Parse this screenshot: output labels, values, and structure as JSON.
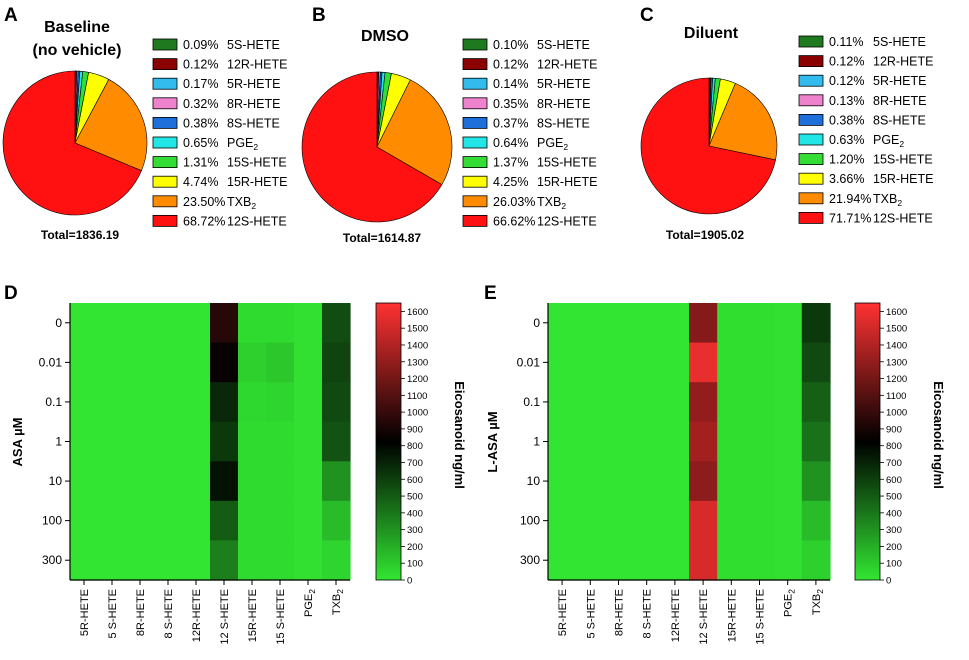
{
  "chart_data": [
    {
      "panel": "A",
      "type": "pie",
      "title_line1": "Baseline",
      "title_line2": "(no vehicle)",
      "total_label": "Total=1836.19",
      "slices": [
        {
          "name": "5S-HETE",
          "pct_label": "0.09%",
          "value": 0.09,
          "color": "#1f7a1f"
        },
        {
          "name": "12R-HETE",
          "pct_label": "0.12%",
          "value": 0.12,
          "color": "#8b0000"
        },
        {
          "name": "5R-HETE",
          "pct_label": "0.17%",
          "value": 0.17,
          "color": "#33bbee"
        },
        {
          "name": "8R-HETE",
          "pct_label": "0.32%",
          "value": 0.32,
          "color": "#ee82cc"
        },
        {
          "name": "8S-HETE",
          "pct_label": "0.38%",
          "value": 0.38,
          "color": "#1e6fd9"
        },
        {
          "name": "PGE",
          "sub": "2",
          "pct_label": "0.65%",
          "value": 0.65,
          "color": "#22e5e5"
        },
        {
          "name": "15S-HETE",
          "pct_label": "1.31%",
          "value": 1.31,
          "color": "#33dd33"
        },
        {
          "name": "15R-HETE",
          "pct_label": "4.74%",
          "value": 4.74,
          "color": "#ffff00"
        },
        {
          "name": "TXB",
          "sub": "2",
          "pct_label": "23.50%",
          "value": 23.5,
          "color": "#ff8c00"
        },
        {
          "name": "12S-HETE",
          "pct_label": "68.72%",
          "value": 68.72,
          "color": "#ff1111"
        }
      ]
    },
    {
      "panel": "B",
      "type": "pie",
      "title_line1": "DMSO",
      "total_label": "Total=1614.87",
      "slices": [
        {
          "name": "5S-HETE",
          "pct_label": "0.10%",
          "value": 0.1,
          "color": "#1f7a1f"
        },
        {
          "name": "12R-HETE",
          "pct_label": "0.12%",
          "value": 0.12,
          "color": "#8b0000"
        },
        {
          "name": "5R-HETE",
          "pct_label": "0.14%",
          "value": 0.14,
          "color": "#33bbee"
        },
        {
          "name": "8R-HETE",
          "pct_label": "0.35%",
          "value": 0.35,
          "color": "#ee82cc"
        },
        {
          "name": "8S-HETE",
          "pct_label": "0.37%",
          "value": 0.37,
          "color": "#1e6fd9"
        },
        {
          "name": "PGE",
          "sub": "2",
          "pct_label": "0.64%",
          "value": 0.64,
          "color": "#22e5e5"
        },
        {
          "name": "15S-HETE",
          "pct_label": "1.37%",
          "value": 1.37,
          "color": "#33dd33"
        },
        {
          "name": "15R-HETE",
          "pct_label": "4.25%",
          "value": 4.25,
          "color": "#ffff00"
        },
        {
          "name": "TXB",
          "sub": "2",
          "pct_label": "26.03%",
          "value": 26.03,
          "color": "#ff8c00"
        },
        {
          "name": "12S-HETE",
          "pct_label": "66.62%",
          "value": 66.62,
          "color": "#ff1111"
        }
      ]
    },
    {
      "panel": "C",
      "type": "pie",
      "title_line1": "Diluent",
      "total_label": "Total=1905.02",
      "slices": [
        {
          "name": "5S-HETE",
          "pct_label": "0.11%",
          "value": 0.11,
          "color": "#1f7a1f"
        },
        {
          "name": "12R-HETE",
          "pct_label": "0.12%",
          "value": 0.12,
          "color": "#8b0000"
        },
        {
          "name": "5R-HETE",
          "pct_label": "0.12%",
          "value": 0.12,
          "color": "#33bbee"
        },
        {
          "name": "8R-HETE",
          "pct_label": "0.13%",
          "value": 0.13,
          "color": "#ee82cc"
        },
        {
          "name": "8S-HETE",
          "pct_label": "0.38%",
          "value": 0.38,
          "color": "#1e6fd9"
        },
        {
          "name": "PGE",
          "sub": "2",
          "pct_label": "0.63%",
          "value": 0.63,
          "color": "#22e5e5"
        },
        {
          "name": "15S-HETE",
          "pct_label": "1.20%",
          "value": 1.2,
          "color": "#33dd33"
        },
        {
          "name": "15R-HETE",
          "pct_label": "3.66%",
          "value": 3.66,
          "color": "#ffff00"
        },
        {
          "name": "TXB",
          "sub": "2",
          "pct_label": "21.94%",
          "value": 21.94,
          "color": "#ff8c00"
        },
        {
          "name": "12S-HETE",
          "pct_label": "71.71%",
          "value": 71.71,
          "color": "#ff1111"
        }
      ]
    },
    {
      "panel": "D",
      "type": "heatmap",
      "ylabel": "ASA µM",
      "colorbar_label": "Eicosanoid ng/ml",
      "colorbar_range": [
        0,
        1650
      ],
      "colorbar_ticks": [
        0,
        100,
        200,
        300,
        400,
        500,
        600,
        700,
        800,
        900,
        1000,
        1100,
        1200,
        1300,
        1400,
        1500,
        1600
      ],
      "colormap": [
        "#32e632",
        "#000000",
        "#ff3232"
      ],
      "rows": [
        "0",
        "0.01",
        "0.1",
        "1",
        "10",
        "100",
        "300"
      ],
      "columns": [
        {
          "name": "5R-HETE"
        },
        {
          "name": "5 S-HETE"
        },
        {
          "name": "8R-HETE"
        },
        {
          "name": "8 S-HETE"
        },
        {
          "name": "12R-HETE"
        },
        {
          "name": "12 S-HETE"
        },
        {
          "name": "15R-HETE"
        },
        {
          "name": "15 S-HETE"
        },
        {
          "name": "PGE",
          "sub": "2"
        },
        {
          "name": "TXB",
          "sub": "2"
        }
      ],
      "values": [
        [
          5,
          5,
          5,
          5,
          5,
          950,
          40,
          40,
          20,
          550
        ],
        [
          5,
          5,
          5,
          5,
          5,
          850,
          80,
          110,
          20,
          580
        ],
        [
          5,
          5,
          5,
          5,
          5,
          680,
          50,
          60,
          20,
          560
        ],
        [
          5,
          5,
          5,
          5,
          5,
          620,
          40,
          40,
          20,
          530
        ],
        [
          5,
          5,
          5,
          5,
          5,
          760,
          40,
          40,
          20,
          300
        ],
        [
          5,
          5,
          5,
          5,
          5,
          500,
          40,
          40,
          20,
          150
        ],
        [
          5,
          5,
          5,
          5,
          5,
          370,
          40,
          40,
          20,
          60
        ]
      ]
    },
    {
      "panel": "E",
      "type": "heatmap",
      "ylabel": "L-ASA µM",
      "colorbar_label": "Eicosanoid ng/ml",
      "colorbar_range": [
        0,
        1650
      ],
      "colorbar_ticks": [
        0,
        100,
        200,
        300,
        400,
        500,
        600,
        700,
        800,
        900,
        1000,
        1100,
        1200,
        1300,
        1400,
        1500,
        1600
      ],
      "colormap": [
        "#32e632",
        "#000000",
        "#ff3232"
      ],
      "rows": [
        "0",
        "0.01",
        "0.1",
        "1",
        "10",
        "100",
        "300"
      ],
      "columns": [
        {
          "name": "5R-HETE"
        },
        {
          "name": "5 S-HETE"
        },
        {
          "name": "8R-HETE"
        },
        {
          "name": "8 S-HETE"
        },
        {
          "name": "12R-HETE"
        },
        {
          "name": "12 S-HETE"
        },
        {
          "name": "15R-HETE"
        },
        {
          "name": "15 S-HETE"
        },
        {
          "name": "PGE",
          "sub": "2"
        },
        {
          "name": "TXB",
          "sub": "2"
        }
      ],
      "values": [
        [
          5,
          5,
          5,
          5,
          5,
          1260,
          30,
          30,
          20,
          620
        ],
        [
          5,
          5,
          5,
          5,
          5,
          1580,
          30,
          30,
          20,
          560
        ],
        [
          5,
          5,
          5,
          5,
          5,
          1300,
          30,
          30,
          20,
          480
        ],
        [
          5,
          5,
          5,
          5,
          5,
          1350,
          30,
          30,
          20,
          420
        ],
        [
          5,
          5,
          5,
          5,
          5,
          1280,
          30,
          30,
          20,
          300
        ],
        [
          5,
          5,
          5,
          5,
          5,
          1520,
          30,
          30,
          20,
          150
        ],
        [
          5,
          5,
          5,
          5,
          5,
          1520,
          30,
          30,
          20,
          80
        ]
      ]
    }
  ]
}
